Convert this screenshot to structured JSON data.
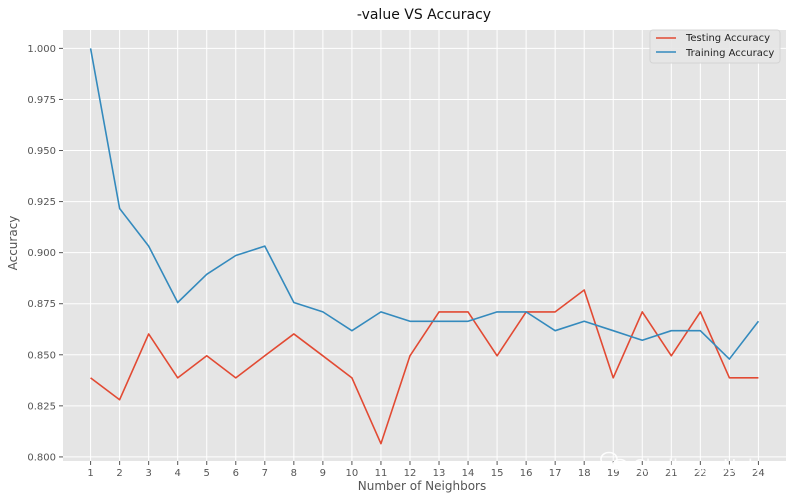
{
  "chart_data": {
    "type": "line",
    "title": "-value VS Accuracy",
    "xlabel": "Number of Neighbors",
    "ylabel": "Accuracy",
    "x": [
      1,
      2,
      3,
      4,
      5,
      6,
      7,
      8,
      9,
      10,
      11,
      12,
      13,
      14,
      15,
      16,
      17,
      18,
      19,
      20,
      21,
      22,
      23,
      24
    ],
    "ylim": [
      0.798,
      1.009
    ],
    "yticks": [
      0.8,
      0.825,
      0.85,
      0.875,
      0.9,
      0.925,
      0.95,
      0.975,
      1.0
    ],
    "ytick_labels": [
      "0.800",
      "0.825",
      "0.850",
      "0.875",
      "0.900",
      "0.925",
      "0.950",
      "0.975",
      "1.000"
    ],
    "grid": true,
    "legend_position": "top-right",
    "series": [
      {
        "name": "Testing Accuracy",
        "color": "#E24A33",
        "values": [
          0.8387,
          0.828,
          0.8602,
          0.8387,
          0.8495,
          0.8387,
          0.8495,
          0.8602,
          0.8495,
          0.8387,
          0.8065,
          0.8495,
          0.871,
          0.871,
          0.8495,
          0.871,
          0.871,
          0.8817,
          0.8387,
          0.871,
          0.8495,
          0.871,
          0.8387,
          0.8387
        ]
      },
      {
        "name": "Training Accuracy",
        "color": "#348ABD",
        "values": [
          1.0,
          0.9216,
          0.9032,
          0.8756,
          0.8894,
          0.8986,
          0.9032,
          0.8756,
          0.871,
          0.8618,
          0.871,
          0.8664,
          0.8664,
          0.8664,
          0.871,
          0.871,
          0.8618,
          0.8664,
          0.8618,
          0.8571,
          0.8618,
          0.8618,
          0.8479,
          0.8664
        ]
      }
    ]
  },
  "watermark": {
    "text": "ChallengeHub",
    "icon": "wechat-icon"
  },
  "colors": {
    "plot_background": "#E5E5E5",
    "grid": "#FFFFFF"
  }
}
